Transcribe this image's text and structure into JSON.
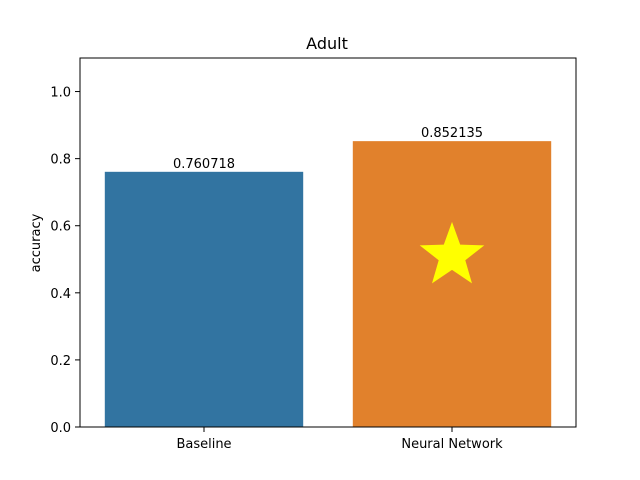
{
  "chart_data": {
    "type": "bar",
    "title": "Adult",
    "xlabel": "",
    "ylabel": "accuracy",
    "categories": [
      "Baseline",
      "Neural Network"
    ],
    "values": [
      0.760718,
      0.852135
    ],
    "data_labels": [
      "0.760718",
      "0.852135"
    ],
    "colors": [
      "#3274a1",
      "#e1812c"
    ],
    "ylim": [
      0,
      1.1
    ],
    "yticks": [
      0.0,
      0.2,
      0.4,
      0.6,
      0.8,
      1.0
    ],
    "ytick_labels": [
      "0.0",
      "0.2",
      "0.4",
      "0.6",
      "0.8",
      "1.0"
    ],
    "grid": false,
    "marker": {
      "shape": "star",
      "color": "#ffff00",
      "category": "Neural Network",
      "y": 0.51
    }
  }
}
